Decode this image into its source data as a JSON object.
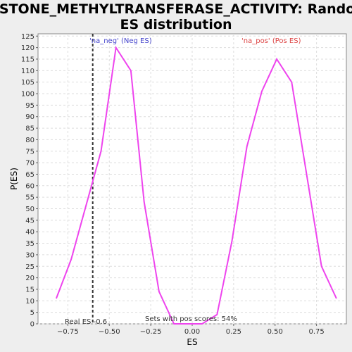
{
  "chart_data": {
    "type": "line",
    "title_line1": "HISTONE_METHYLTRANSFERASE_ACTIVITY: Random",
    "title_line2": "ES distribution",
    "xlabel": "ES",
    "ylabel": "P(ES)",
    "xlim": [
      -0.93,
      0.93
    ],
    "ylim": [
      0,
      126
    ],
    "x_ticks": [
      -0.75,
      -0.5,
      -0.25,
      0.0,
      0.25,
      0.5,
      0.75
    ],
    "x_tick_labels": [
      "−0.75",
      "−0.50",
      "−0.25",
      "0.00",
      "0.25",
      "0.50",
      "0.75"
    ],
    "y_ticks": [
      0,
      5,
      10,
      15,
      20,
      25,
      30,
      35,
      40,
      45,
      50,
      55,
      60,
      65,
      70,
      75,
      80,
      85,
      90,
      95,
      100,
      105,
      110,
      115,
      120,
      125
    ],
    "grid": true,
    "line_color": "#ee44ee",
    "series": [
      {
        "x": [
          -0.82,
          -0.73,
          -0.55,
          -0.46,
          -0.37,
          -0.29,
          -0.2,
          -0.11,
          -0.03,
          0.06,
          0.15,
          0.24,
          0.33,
          0.42,
          0.51,
          0.6,
          0.69,
          0.78,
          0.87
        ],
        "y": [
          11,
          28,
          75,
          120,
          110,
          53,
          14,
          0,
          0,
          0,
          4,
          36,
          77,
          101,
          115,
          105,
          65,
          25,
          11
        ]
      }
    ],
    "real_es": -0.6,
    "real_es_label": "Real ES -0.6",
    "neg_label": "'na_neg' (Neg ES)",
    "pos_label": "'na_pos' (Pos ES)",
    "neg_label_color": "#4444cc",
    "pos_label_color": "#dd4444",
    "pos_scores_label": "Sets with pos scores: 54%"
  }
}
